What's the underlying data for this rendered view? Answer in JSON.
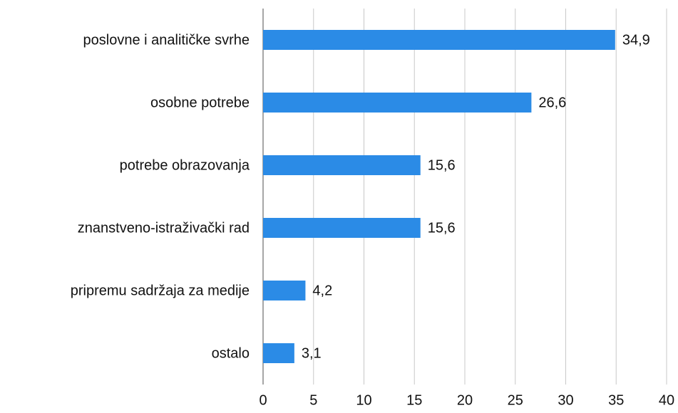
{
  "chart_data": {
    "type": "bar",
    "orientation": "horizontal",
    "categories": [
      "poslovne i analitičke svrhe",
      "osobne potrebe",
      "potrebe obrazovanja",
      "znanstveno-istraživački rad",
      "pripremu sadržaja za medije",
      "ostalo"
    ],
    "values": [
      34.9,
      26.6,
      15.6,
      15.6,
      4.2,
      3.1
    ],
    "value_labels": [
      "34,9",
      "26,6",
      "15,6",
      "15,6",
      "4,2",
      "3,1"
    ],
    "color": "#2b8be6",
    "xlim": [
      0,
      40
    ],
    "xticks": [
      0,
      5,
      10,
      15,
      20,
      25,
      30,
      35,
      40
    ],
    "grid": true
  }
}
